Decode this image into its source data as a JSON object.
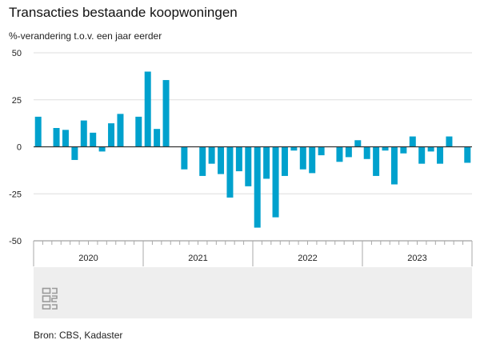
{
  "header": {
    "title": "Transacties bestaande koopwoningen",
    "subtitle": "%-verandering t.o.v. een jaar eerder"
  },
  "footer": {
    "source": "Bron: CBS, Kadaster",
    "logo_icon": "cbs-logo-icon"
  },
  "chart_data": {
    "type": "bar",
    "ylabel": "",
    "xlabel": "",
    "ylim": [
      -50,
      50
    ],
    "yticks": [
      50,
      25,
      0,
      -25,
      -50
    ],
    "years": [
      "2020",
      "2021",
      "2022",
      "2023"
    ],
    "grid": true,
    "bar_color": "#00a1cd",
    "categories": [
      "2020-01",
      "2020-02",
      "2020-03",
      "2020-04",
      "2020-05",
      "2020-06",
      "2020-07",
      "2020-08",
      "2020-09",
      "2020-10",
      "2020-11",
      "2020-12",
      "2021-01",
      "2021-02",
      "2021-03",
      "2021-04",
      "2021-05",
      "2021-06",
      "2021-07",
      "2021-08",
      "2021-09",
      "2021-10",
      "2021-11",
      "2021-12",
      "2022-01",
      "2022-02",
      "2022-03",
      "2022-04",
      "2022-05",
      "2022-06",
      "2022-07",
      "2022-08",
      "2022-09",
      "2022-10",
      "2022-11",
      "2022-12",
      "2023-01",
      "2023-02",
      "2023-03",
      "2023-04",
      "2023-05",
      "2023-06",
      "2023-07",
      "2023-08",
      "2023-09",
      "2023-10",
      "2023-11",
      "2023-12"
    ],
    "values": [
      16,
      null,
      10,
      9,
      -7,
      14,
      7.5,
      -2.5,
      12.5,
      17.5,
      null,
      16,
      40,
      9.5,
      35.5,
      null,
      -12,
      null,
      -15.5,
      -9,
      -14.5,
      -27,
      -13,
      -21,
      -43,
      -17,
      -37.5,
      -15.5,
      -2,
      -12,
      -14,
      -4.5,
      null,
      -8,
      -5.5,
      3.5,
      -6.5,
      -15.5,
      -2,
      -20,
      -3.5,
      5.5,
      -9,
      -2.5,
      -9,
      5.5,
      null,
      -8.5
    ]
  }
}
